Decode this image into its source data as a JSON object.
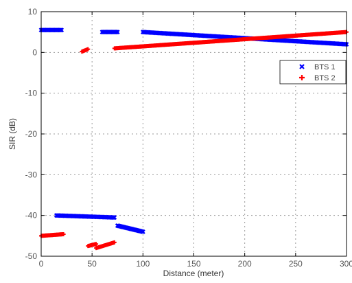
{
  "chart_data": {
    "type": "scatter",
    "xlabel": "Distance (meter)",
    "ylabel": "SIR (dB)",
    "xlim": [
      0,
      300
    ],
    "ylim": [
      -50,
      10
    ],
    "xticks": [
      0,
      50,
      100,
      150,
      200,
      250,
      300
    ],
    "yticks": [
      10,
      0,
      -10,
      -20,
      -30,
      -40,
      -50
    ],
    "xtick_labels": [
      "0",
      "50",
      "100",
      "150",
      "200",
      "250",
      "300"
    ],
    "ytick_labels": [
      "10",
      "0",
      "-10",
      "-20",
      "-30",
      "-40",
      "-50"
    ],
    "grid": true,
    "legend_position": "right",
    "series": [
      {
        "name": "BTS 1",
        "color": "#0000ff",
        "marker": "x",
        "segments": [
          {
            "x": [
              0,
              20
            ],
            "y": [
              5.5,
              5.5
            ]
          },
          {
            "x": [
              60,
              75
            ],
            "y": [
              5.0,
              5.0
            ]
          },
          {
            "x": [
              100,
              300
            ],
            "y": [
              5.0,
              2.0
            ]
          },
          {
            "x": [
              15,
              72
            ],
            "y": [
              -40.0,
              -40.5
            ]
          },
          {
            "x": [
              75,
              100
            ],
            "y": [
              -42.5,
              -44.0
            ]
          }
        ]
      },
      {
        "name": "BTS 2",
        "color": "#ff0000",
        "marker": "+",
        "segments": [
          {
            "x": [
              40,
              46
            ],
            "y": [
              0.2,
              0.8
            ]
          },
          {
            "x": [
              72,
              300
            ],
            "y": [
              1.0,
              5.0
            ]
          },
          {
            "x": [
              0,
              22
            ],
            "y": [
              -45.0,
              -44.6
            ]
          },
          {
            "x": [
              46,
              54
            ],
            "y": [
              -47.5,
              -47.0
            ]
          },
          {
            "x": [
              54,
              72
            ],
            "y": [
              -48.0,
              -46.6
            ]
          }
        ]
      }
    ]
  }
}
